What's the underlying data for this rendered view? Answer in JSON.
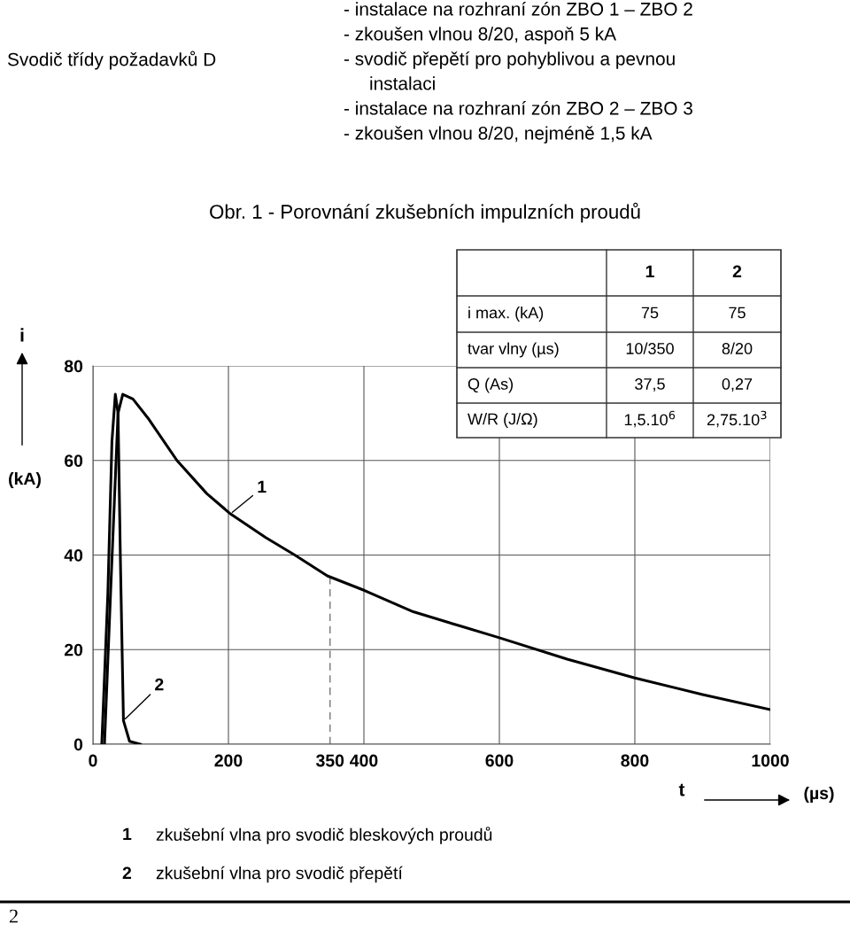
{
  "chart_data": {
    "type": "line",
    "title": "Obr. 1 - Porovnání zkušebních impulzních proudů",
    "xlabel": "t",
    "ylabel": "i",
    "xlim": [
      0,
      1000
    ],
    "ylim": [
      0,
      80
    ],
    "xticks": [
      0,
      200,
      350,
      400,
      600,
      800,
      1000
    ],
    "yticks": [
      0,
      20,
      40,
      60,
      80
    ],
    "grid": true,
    "marker": "none",
    "line_style": "solid",
    "legend": false,
    "series": [
      {
        "color": "#000000",
        "x": [
          17,
          26,
          37,
          44,
          59,
          81,
          124,
          168,
          203,
          255,
          298,
          346,
          401,
          473,
          542,
          600,
          700,
          800,
          900,
          1000
        ],
        "values": [
          0,
          32,
          70,
          74,
          73,
          69,
          60,
          53,
          48.7,
          43.7,
          40,
          35.6,
          32.5,
          28,
          25,
          22.5,
          18,
          14,
          10.5,
          7.3
        ]
      },
      {
        "color": "#000000",
        "x": [
          13,
          22,
          28,
          33,
          37,
          40.5,
          45,
          54,
          70
        ],
        "values": [
          0,
          32,
          64,
          74,
          70,
          39,
          5,
          0.6,
          0
        ]
      }
    ],
    "ref_lines": [
      {
        "axis": "x",
        "value": 350,
        "color": "#777777",
        "line_style": "dashed"
      }
    ],
    "annotations": [
      "- instalace na rozhraní zón ZBO 1 – ZBO 2",
      "- zkoušen vlnou 8/20, aspoň 5 kA",
      "Svodič třídy požadavků D",
      "- svodič přepětí pro pohyblivou a pevnou",
      "instalaci",
      "- instalace na rozhraní zón ZBO 2 – ZBO 3",
      "- zkoušen vlnou 8/20, nejméně 1,5 kA",
      "1",
      "2",
      "i max. (kA)",
      "75",
      "75",
      "tvar vlny (µs)",
      "10/350",
      "8/20",
      "Q (As)",
      "37,5",
      "0,27",
      "W/R (J/Ω)",
      "1,5.10$^{6}$",
      "2,75.10$^{3}$",
      "(kA)",
      "(µs)",
      {
        "text": "1",
        "x": 203,
        "y": 48.7
      },
      {
        "text": "2",
        "x": 45,
        "y": 5
      },
      "1",
      "zkušební vlna pro svodič bleskových proudů",
      "2",
      "zkušební vlna pro svodič přepětí",
      "2"
    ]
  }
}
